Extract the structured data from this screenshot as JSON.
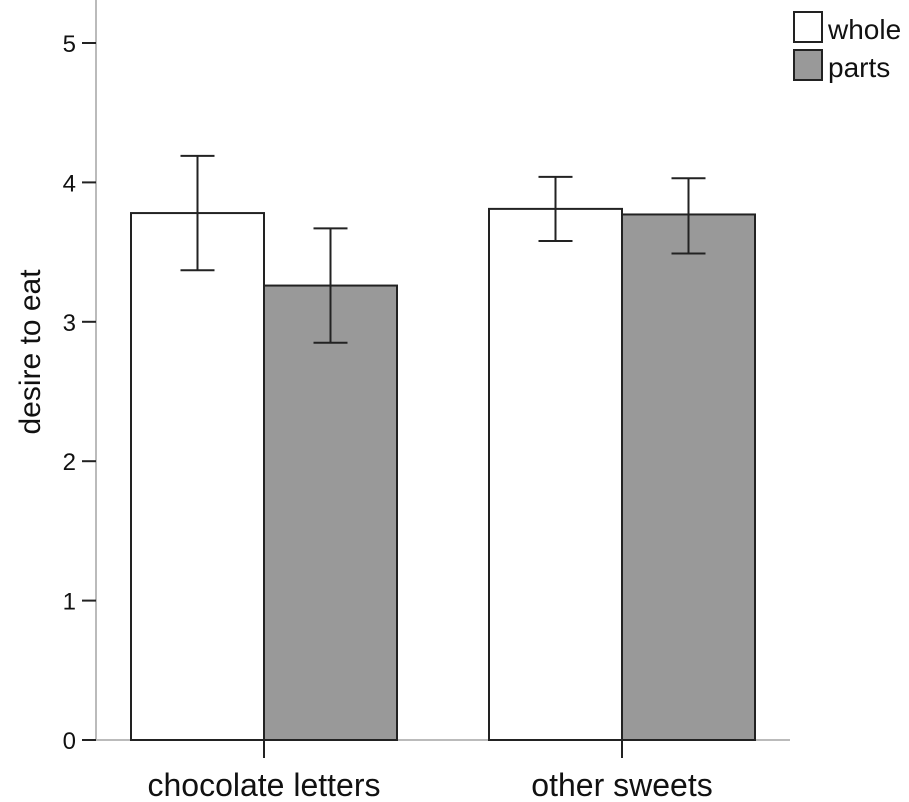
{
  "chart_data": {
    "type": "bar",
    "title": "",
    "xlabel": "",
    "ylabel": "desire to eat",
    "categories": [
      "chocolate letters",
      "other sweets"
    ],
    "series": [
      {
        "name": "whole",
        "color": "#ffffff",
        "values": [
          3.78,
          3.81
        ],
        "error_low": [
          3.37,
          3.58
        ],
        "error_high": [
          4.19,
          4.04
        ]
      },
      {
        "name": "parts",
        "color": "#999999",
        "values": [
          3.26,
          3.77
        ],
        "error_low": [
          2.85,
          3.49
        ],
        "error_high": [
          3.67,
          4.03
        ]
      }
    ],
    "ylim": [
      0,
      5
    ],
    "yticks": [
      "0",
      "1",
      "2",
      "3",
      "4",
      "5"
    ],
    "grid": false,
    "legend_position": "top-right",
    "bar_edge_color": "#222222",
    "axis_color": "#bbbbbb"
  }
}
